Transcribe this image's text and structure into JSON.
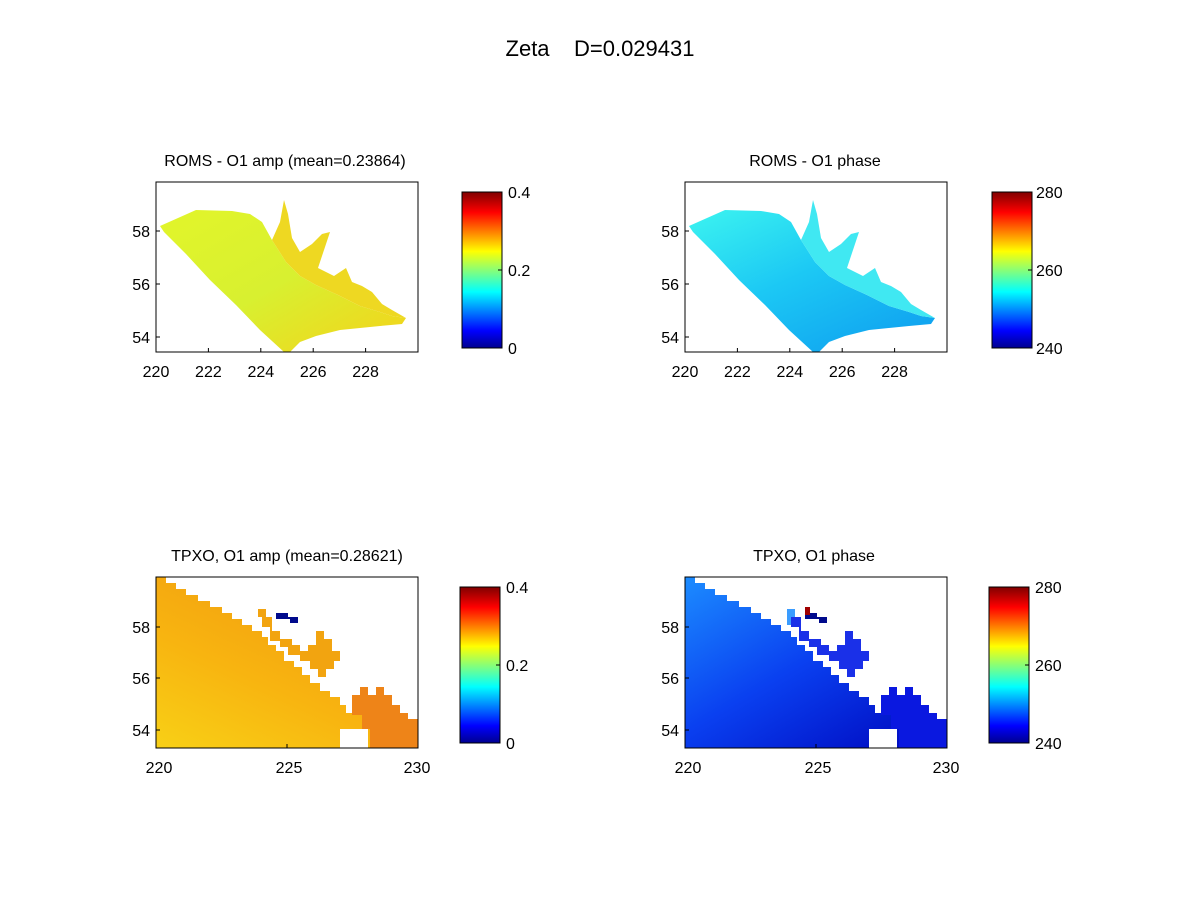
{
  "figure_title": "Zeta    D=0.029431",
  "chart_data": [
    {
      "type": "heatmap",
      "title": "ROMS - O1 amp (mean=0.23864)",
      "xlim": [
        220,
        230
      ],
      "ylim": [
        53.4,
        59.7
      ],
      "xticks": [
        220,
        222,
        224,
        226,
        228
      ],
      "yticks": [
        54,
        56,
        58
      ],
      "clim": [
        0,
        0.4
      ],
      "cticks": [
        0,
        0.2,
        0.4
      ],
      "colormap": "jet",
      "grid": false,
      "estimated_value_range": [
        0.26,
        0.31
      ]
    },
    {
      "type": "heatmap",
      "title": "ROMS - O1 phase",
      "xlim": [
        220,
        230
      ],
      "ylim": [
        53.4,
        59.7
      ],
      "xticks": [
        220,
        222,
        224,
        226,
        228
      ],
      "yticks": [
        54,
        56,
        58
      ],
      "clim": [
        240,
        280
      ],
      "cticks": [
        240,
        260,
        280
      ],
      "colormap": "jet",
      "grid": false,
      "estimated_value_range": [
        252,
        258
      ]
    },
    {
      "type": "heatmap",
      "title": "TPXO, O1 amp (mean=0.28621)",
      "xlim": [
        220,
        230
      ],
      "ylim": [
        53.3,
        59.7
      ],
      "xticks": [
        220,
        225,
        230
      ],
      "yticks": [
        54,
        56,
        58
      ],
      "clim": [
        0,
        0.4
      ],
      "cticks": [
        0,
        0.2,
        0.4
      ],
      "colormap": "jet",
      "grid": false,
      "estimated_value_range": [
        0.3,
        0.34
      ]
    },
    {
      "type": "heatmap",
      "title": "TPXO, O1 phase",
      "xlim": [
        220,
        230
      ],
      "ylim": [
        53.3,
        59.7
      ],
      "xticks": [
        220,
        225,
        230
      ],
      "yticks": [
        54,
        56,
        58
      ],
      "clim": [
        240,
        280
      ],
      "cticks": [
        240,
        260,
        280
      ],
      "colormap": "jet",
      "grid": false,
      "estimated_value_range": [
        240,
        252
      ]
    }
  ]
}
